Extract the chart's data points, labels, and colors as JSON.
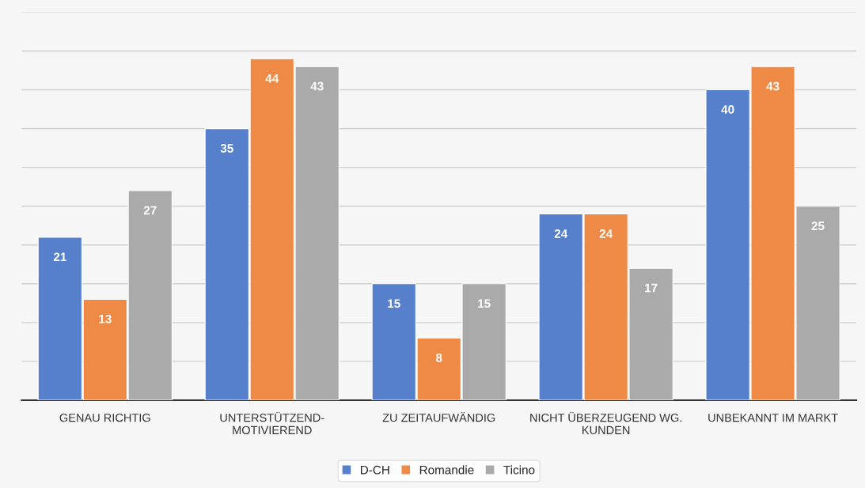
{
  "chart_data": {
    "type": "bar",
    "categories": [
      "GENAU RICHTIG",
      "UNTERSTÜTZEND-\nMOTIVIEREND",
      "ZU ZEITAUFWÄNDIG",
      "NICHT ÜBERZEUGEND WG.\nKUNDEN",
      "UNBEKANNT IM MARKT"
    ],
    "series": [
      {
        "name": "D-CH",
        "color": "#5780cc",
        "values": [
          21,
          35,
          15,
          24,
          40
        ]
      },
      {
        "name": "Romandie",
        "color": "#ee8a45",
        "values": [
          13,
          44,
          8,
          24,
          43
        ]
      },
      {
        "name": "Ticino",
        "color": "#aaaaaa",
        "values": [
          27,
          43,
          15,
          17,
          25
        ]
      }
    ],
    "ylim": [
      0,
      50
    ],
    "yticks": [
      {
        "value": 0,
        "label": null
      },
      {
        "value": 5,
        "label": null
      },
      {
        "value": 10,
        "label": null
      },
      {
        "value": 15,
        "label": null
      },
      {
        "value": 20,
        "label": null
      },
      {
        "value": 25,
        "label": null
      },
      {
        "value": 30,
        "label": null
      },
      {
        "value": 35,
        "label": null
      },
      {
        "value": 40,
        "label": null
      },
      {
        "value": 45,
        "label": null
      },
      {
        "value": 50,
        "label": null
      }
    ],
    "tick_labels": "x",
    "grid": "y",
    "legend": "bottom",
    "data_labels": true
  }
}
